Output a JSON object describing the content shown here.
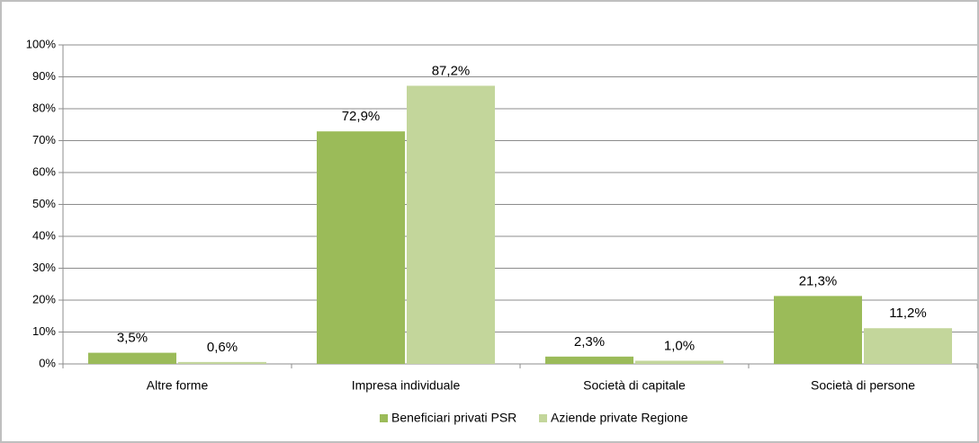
{
  "chart_data": {
    "type": "bar",
    "categories": [
      "Altre forme",
      "Impresa individuale",
      "Società di capitale",
      "Società di persone"
    ],
    "series": [
      {
        "name": "Beneficiari privati PSR",
        "color": "#9bbb59",
        "values": [
          3.5,
          72.9,
          2.3,
          21.3
        ],
        "value_labels": [
          "3,5%",
          "72,9%",
          "2,3%",
          "21,3%"
        ]
      },
      {
        "name": "Aziende private Regione",
        "color": "#c3d69b",
        "values": [
          0.6,
          87.2,
          1.0,
          11.2
        ],
        "value_labels": [
          "0,6%",
          "87,2%",
          "1,0%",
          "11,2%"
        ]
      }
    ],
    "ylim": [
      0,
      100
    ],
    "yticks": [
      {
        "value": 0,
        "label": "0%"
      },
      {
        "value": 10,
        "label": "10%"
      },
      {
        "value": 20,
        "label": "20%"
      },
      {
        "value": 30,
        "label": "30%"
      },
      {
        "value": 40,
        "label": "40%"
      },
      {
        "value": 50,
        "label": "50%"
      },
      {
        "value": 60,
        "label": "60%"
      },
      {
        "value": 70,
        "label": "70%"
      },
      {
        "value": 80,
        "label": "80%"
      },
      {
        "value": 90,
        "label": "90%"
      },
      {
        "value": 100,
        "label": "100%"
      }
    ],
    "grid": true,
    "legend": "bottom"
  }
}
